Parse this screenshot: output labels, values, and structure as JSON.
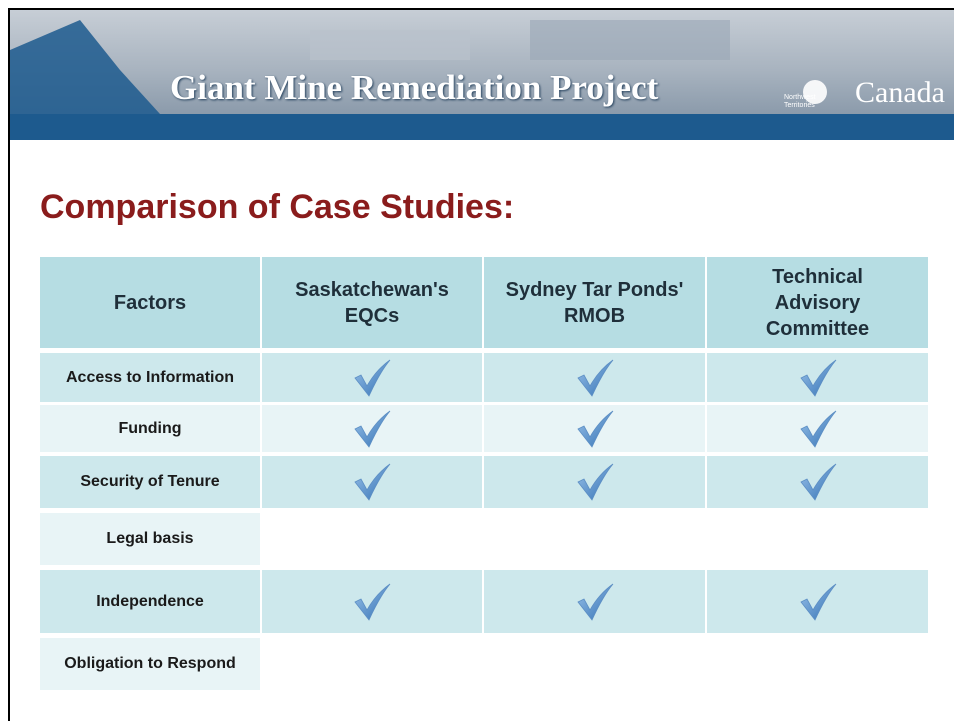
{
  "header": {
    "title": "Giant Mine Remediation Project",
    "territory": "Northwest Territories",
    "country": "Canada"
  },
  "heading": "Comparison of Case Studies:",
  "table": {
    "columns": [
      "Factors",
      "Saskatchewan's EQCs",
      "Sydney Tar Ponds' RMOB",
      "Technical Advisory Committee"
    ],
    "rows": [
      {
        "factor": "Access to Information",
        "checks": [
          true,
          true,
          true
        ]
      },
      {
        "factor": "Funding",
        "checks": [
          true,
          true,
          true
        ]
      },
      {
        "factor": "Security of Tenure",
        "checks": [
          true,
          true,
          true
        ]
      },
      {
        "factor": "Legal basis",
        "checks": [
          false,
          false,
          false
        ]
      },
      {
        "factor": "Independence",
        "checks": [
          true,
          true,
          true
        ]
      },
      {
        "factor": "Obligation to Respond",
        "checks": [
          false,
          false,
          false
        ]
      }
    ]
  }
}
